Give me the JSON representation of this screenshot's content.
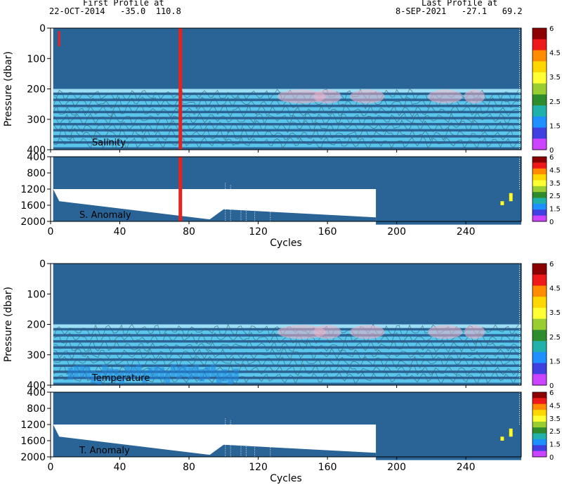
{
  "header": {
    "first_label": "First Profile at",
    "first_info": "22-OCT-2014   -35.0  110.8",
    "last_label": "Last Profile at",
    "last_info": "8-SEP-2021   -27.1   69.2"
  },
  "chart_data": [
    {
      "type": "heatmap",
      "panel": "salinity",
      "annotation": "Salinity",
      "ylabel": "Pressure (dbar)",
      "xlim": [
        0,
        272
      ],
      "ylim": [
        400,
        0
      ],
      "yticks": [
        0,
        100,
        200,
        300,
        400
      ],
      "xticks": [
        0,
        40,
        80,
        120,
        160,
        200,
        240
      ],
      "flagged_cycles": [
        75
      ],
      "colors": {
        "background": "#2a6396",
        "flag": "#e8231e",
        "band_light": "#a8ecff",
        "band_mid": "#5fd0f5"
      }
    },
    {
      "type": "heatmap",
      "panel": "salinity_anomaly",
      "annotation": "S. Anomaly",
      "xlabel": "Cycles",
      "xlim": [
        0,
        272
      ],
      "ylim": [
        2000,
        400
      ],
      "yticks": [
        400,
        800,
        1200,
        1600,
        2000
      ],
      "xticks": [
        0,
        40,
        80,
        120,
        160,
        200,
        240
      ],
      "flagged_cycles": [
        75
      ]
    },
    {
      "type": "heatmap",
      "panel": "temperature",
      "annotation": "Temperature",
      "ylabel": "Pressure (dbar)",
      "xlim": [
        0,
        272
      ],
      "ylim": [
        400,
        0
      ],
      "yticks": [
        0,
        100,
        200,
        300,
        400
      ],
      "xticks": [
        0,
        40,
        80,
        120,
        160,
        200,
        240
      ],
      "flagged_cycles": []
    },
    {
      "type": "heatmap",
      "panel": "temperature_anomaly",
      "annotation": "T. Anomaly",
      "xlabel": "Cycles",
      "xlim": [
        0,
        272
      ],
      "ylim": [
        2000,
        400
      ],
      "yticks": [
        400,
        800,
        1200,
        1600,
        2000
      ],
      "xticks": [
        0,
        40,
        80,
        120,
        160,
        200,
        240
      ],
      "flagged_cycles": []
    }
  ],
  "colorbar": {
    "tick_labels": [
      "6",
      "4.5",
      "3.5",
      "2.5",
      "1.5",
      "0"
    ],
    "colors": [
      "#8b0000",
      "#ee1a1a",
      "#ff8c00",
      "#ffd700",
      "#ffff33",
      "#9acd32",
      "#2e8b2e",
      "#20b2aa",
      "#1e90ff",
      "#4040e0",
      "#cc44ff"
    ]
  }
}
